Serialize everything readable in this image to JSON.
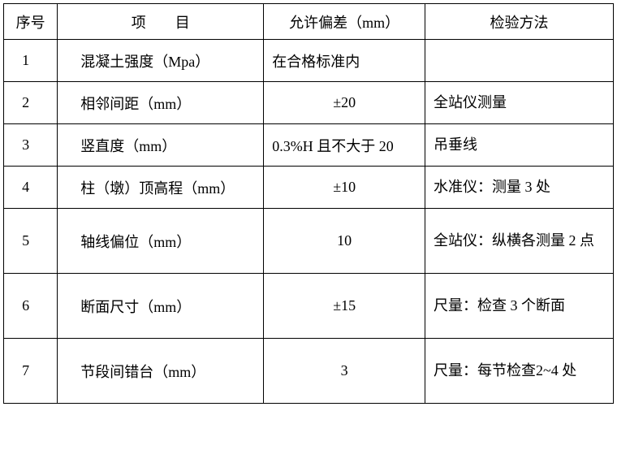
{
  "table": {
    "headers": {
      "seq": "序号",
      "item": "项　　目",
      "tolerance": "允许偏差（mm）",
      "method": "检验方法"
    },
    "rows": [
      {
        "seq": "1",
        "item": "混凝土强度（Mpa）",
        "tolerance": "在合格标准内",
        "method": "",
        "tolerance_align": "left",
        "height": "short"
      },
      {
        "seq": "2",
        "item": "相邻间距（mm）",
        "tolerance": "±20",
        "method": "全站仪测量",
        "tolerance_align": "center",
        "height": "short"
      },
      {
        "seq": "3",
        "item": "竖直度（mm）",
        "tolerance": "0.3%H 且不大于 20",
        "method": "吊垂线",
        "tolerance_align": "left",
        "height": "short"
      },
      {
        "seq": "4",
        "item": "柱（墩）顶高程（mm）",
        "tolerance": "±10",
        "method": "水准仪：测量 3 处",
        "tolerance_align": "center",
        "height": "short"
      },
      {
        "seq": "5",
        "item": "轴线偏位（mm）",
        "tolerance": "10",
        "method": "全站仪：纵横各测量 2 点",
        "tolerance_align": "center",
        "height": "tall"
      },
      {
        "seq": "6",
        "item": "断面尺寸（mm）",
        "tolerance": "±15",
        "method": "尺量：检查 3 个断面",
        "tolerance_align": "center",
        "height": "tall"
      },
      {
        "seq": "7",
        "item": "节段间错台（mm）",
        "tolerance": "3",
        "method": "尺量：每节检查2~4 处",
        "tolerance_align": "center",
        "height": "tall"
      }
    ],
    "colors": {
      "border": "#000000",
      "text": "#000000",
      "background": "#ffffff"
    },
    "font_size": 18
  }
}
